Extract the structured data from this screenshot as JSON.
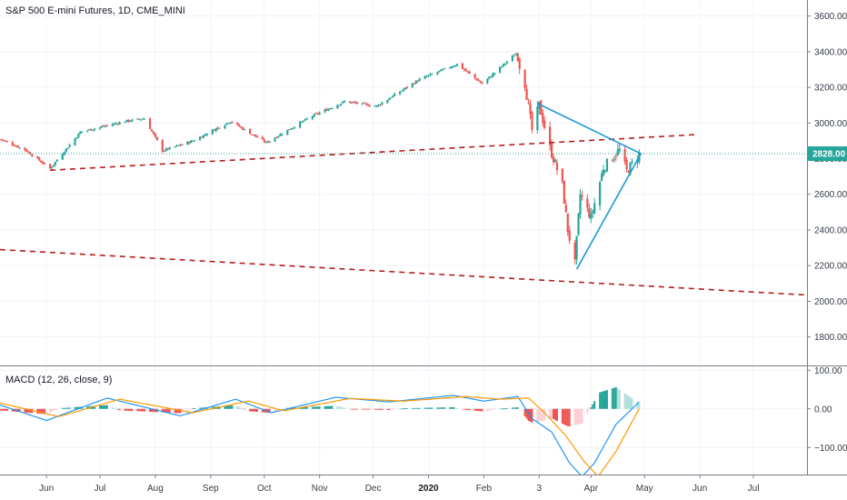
{
  "chart": {
    "title": "S&P 500 E-mini Futures, 1D, CME_MINI",
    "indicator_title": "MACD (12, 26, close, 9)",
    "current_price_label": "2828.00"
  },
  "colors": {
    "up": "#26a69a",
    "down": "#ef5350",
    "trend_red": "#b71c1c",
    "trend_blue": "#1e96d8",
    "price_line": "#26a69a",
    "macd_line": "#2196f3",
    "signal_line": "#ff9800",
    "hist_up": "#26a69a",
    "hist_down": "#ef5350",
    "hist_up_light": "#b2dfdb",
    "hist_down_light": "#ffcdd2",
    "grid": "#f0f3fa",
    "axis": "#787b86"
  },
  "chart_data": [
    {
      "type": "candlestick",
      "title": "S&P 500 E-mini Futures, 1D, CME_MINI",
      "y_ticks": [
        "3600.00",
        "3400.00",
        "3200.00",
        "3000.00",
        "2800.00",
        "2600.00",
        "2400.00",
        "2200.00",
        "2000.00",
        "1800.00"
      ],
      "y_tick_values": [
        3600,
        3400,
        3200,
        3000,
        2800,
        2600,
        2400,
        2200,
        2000,
        1800
      ],
      "ylim": [
        1640,
        3690
      ],
      "x_ticks": [
        "Jun",
        "Jul",
        "Aug",
        "Sep",
        "Oct",
        "Nov",
        "Dec",
        "2020",
        "Feb",
        "3",
        "Apr",
        "May",
        "Jun",
        "Jul"
      ],
      "x_tick_dates": [
        "2019-06-01",
        "2019-07-01",
        "2019-08-01",
        "2019-09-01",
        "2019-10-01",
        "2019-11-01",
        "2019-12-01",
        "2020-01-01",
        "2020-02-01",
        "2020-03-03",
        "2020-04-01",
        "2020-05-01",
        "2020-06-01",
        "2020-07-01"
      ],
      "x_range": [
        "2019-05-06",
        "2020-07-31"
      ],
      "last_price": 2828,
      "keypoints": [
        {
          "date": "2019-05-06",
          "close": 2910
        },
        {
          "date": "2019-05-20",
          "close": 2850
        },
        {
          "date": "2019-06-03",
          "close": 2745
        },
        {
          "date": "2019-06-20",
          "close": 2950
        },
        {
          "date": "2019-07-15",
          "close": 3010
        },
        {
          "date": "2019-07-26",
          "close": 3025
        },
        {
          "date": "2019-08-05",
          "close": 2845
        },
        {
          "date": "2019-08-22",
          "close": 2900
        },
        {
          "date": "2019-09-12",
          "close": 3010
        },
        {
          "date": "2019-10-02",
          "close": 2890
        },
        {
          "date": "2019-10-28",
          "close": 3040
        },
        {
          "date": "2019-11-15",
          "close": 3120
        },
        {
          "date": "2019-12-03",
          "close": 3095
        },
        {
          "date": "2019-12-27",
          "close": 3245
        },
        {
          "date": "2020-01-17",
          "close": 3330
        },
        {
          "date": "2020-01-31",
          "close": 3220
        },
        {
          "date": "2020-02-19",
          "close": 3390
        },
        {
          "date": "2020-02-24",
          "close": 3220
        },
        {
          "date": "2020-02-28",
          "close": 2960
        },
        {
          "date": "2020-03-03",
          "close": 3100
        },
        {
          "date": "2020-03-09",
          "close": 2860
        },
        {
          "date": "2020-03-16",
          "close": 2650
        },
        {
          "date": "2020-03-19",
          "close": 2400
        },
        {
          "date": "2020-03-23",
          "close": 2210
        },
        {
          "date": "2020-03-26",
          "close": 2600
        },
        {
          "date": "2020-04-01",
          "close": 2470
        },
        {
          "date": "2020-04-08",
          "close": 2750
        },
        {
          "date": "2020-04-17",
          "close": 2850
        },
        {
          "date": "2020-04-21",
          "close": 2730
        },
        {
          "date": "2020-04-28",
          "close": 2828
        }
      ],
      "trendlines": [
        {
          "color": "trend_red",
          "dashed": true,
          "from": {
            "date": "2019-06-03",
            "price": 2735
          },
          "to": {
            "date": "2020-05-30",
            "price": 2935
          }
        },
        {
          "color": "trend_red",
          "dashed": true,
          "from": {
            "date": "2019-05-06",
            "price": 2290
          },
          "to": {
            "date": "2020-07-31",
            "price": 2035
          }
        },
        {
          "color": "trend_blue",
          "dashed": false,
          "from": {
            "date": "2020-03-02",
            "price": 3110
          },
          "to": {
            "date": "2020-04-29",
            "price": 2828
          }
        },
        {
          "color": "trend_blue",
          "dashed": false,
          "from": {
            "date": "2020-03-24",
            "price": 2180
          },
          "to": {
            "date": "2020-04-29",
            "price": 2828
          }
        }
      ]
    },
    {
      "type": "macd",
      "title": "MACD (12, 26, close, 9)",
      "y_ticks": [
        "100.00",
        "0.00",
        "−100.00"
      ],
      "y_tick_values": [
        100,
        0,
        -100
      ],
      "ylim": [
        -170,
        110
      ],
      "macd_keypoints": [
        {
          "date": "2019-05-06",
          "value": 10
        },
        {
          "date": "2019-06-01",
          "value": -30
        },
        {
          "date": "2019-07-05",
          "value": 28
        },
        {
          "date": "2019-08-15",
          "value": -18
        },
        {
          "date": "2019-09-15",
          "value": 25
        },
        {
          "date": "2019-10-05",
          "value": -10
        },
        {
          "date": "2019-11-10",
          "value": 30
        },
        {
          "date": "2019-12-10",
          "value": 18
        },
        {
          "date": "2020-01-15",
          "value": 35
        },
        {
          "date": "2020-02-01",
          "value": 20
        },
        {
          "date": "2020-02-20",
          "value": 32
        },
        {
          "date": "2020-02-28",
          "value": -25
        },
        {
          "date": "2020-03-10",
          "value": -60
        },
        {
          "date": "2020-03-20",
          "value": -140
        },
        {
          "date": "2020-03-27",
          "value": -175
        },
        {
          "date": "2020-04-03",
          "value": -140
        },
        {
          "date": "2020-04-15",
          "value": -40
        },
        {
          "date": "2020-04-28",
          "value": 18
        }
      ],
      "signal_keypoints": [
        {
          "date": "2019-05-06",
          "value": 15
        },
        {
          "date": "2019-06-08",
          "value": -20
        },
        {
          "date": "2019-07-12",
          "value": 25
        },
        {
          "date": "2019-08-22",
          "value": -10
        },
        {
          "date": "2019-09-22",
          "value": 20
        },
        {
          "date": "2019-10-12",
          "value": -5
        },
        {
          "date": "2019-11-18",
          "value": 27
        },
        {
          "date": "2019-12-18",
          "value": 20
        },
        {
          "date": "2020-01-22",
          "value": 32
        },
        {
          "date": "2020-02-10",
          "value": 25
        },
        {
          "date": "2020-02-26",
          "value": 28
        },
        {
          "date": "2020-03-06",
          "value": -10
        },
        {
          "date": "2020-03-18",
          "value": -70
        },
        {
          "date": "2020-03-28",
          "value": -135
        },
        {
          "date": "2020-04-05",
          "value": -175
        },
        {
          "date": "2020-04-15",
          "value": -110
        },
        {
          "date": "2020-04-28",
          "value": 0
        }
      ]
    }
  ]
}
